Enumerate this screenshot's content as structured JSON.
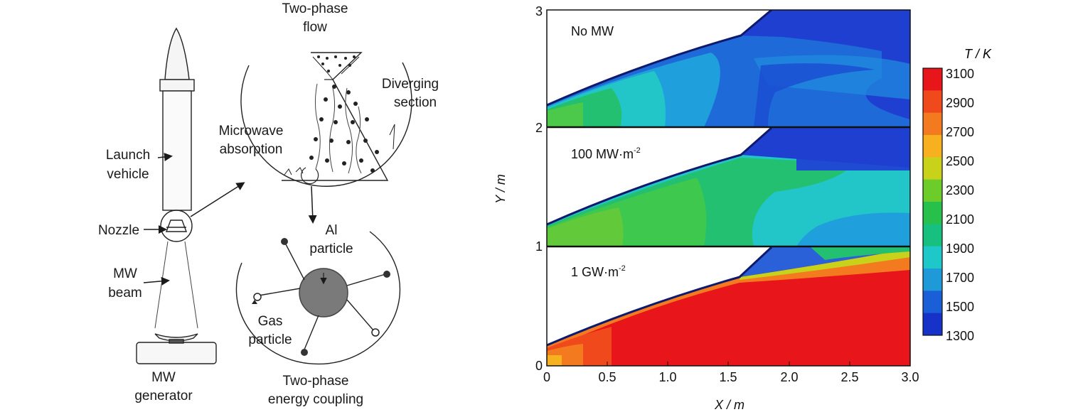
{
  "left_panel": {
    "title_line1": "Two-phase",
    "title_line2": "flow",
    "diverging_line1": "Diverging",
    "diverging_line2": "section",
    "microwave_line1": "Microwave",
    "microwave_line2": "absorption",
    "launch_line1": "Launch",
    "launch_line2": "vehicle",
    "nozzle": "Nozzle",
    "beam_line1": "MW",
    "beam_line2": "beam",
    "generator_line1": "MW",
    "generator_line2": "generator",
    "al_line1": "Al",
    "al_line2": "particle",
    "gas_line1": "Gas",
    "gas_line2": "particle",
    "coupling_line1": "Two-phase",
    "coupling_line2": "energy coupling"
  },
  "right_panel": {
    "subplot_labels": [
      "No MW",
      "100 MW·m",
      "1 GW·m"
    ],
    "superscript": "-2",
    "x_axis_label": "X / m",
    "y_axis_label": "Y / m",
    "x_ticks": [
      "0",
      "0.5",
      "1.0",
      "1.5",
      "2.0",
      "2.5",
      "3.0"
    ],
    "y_ticks": [
      "0",
      "1",
      "2",
      "3"
    ],
    "colorbar_title": "T / K",
    "colorbar_ticks": [
      "3100",
      "2900",
      "2700",
      "2500",
      "2300",
      "2100",
      "1900",
      "1700",
      "1500",
      "1300"
    ],
    "colorbar_colors": [
      "#e8151b",
      "#f04a1c",
      "#f47a20",
      "#f6b020",
      "#c8d21a",
      "#6ccd2a",
      "#26c04a",
      "#18c080",
      "#1ec8c8",
      "#1f9ad8",
      "#1a5fd8",
      "#1632c8"
    ]
  }
}
